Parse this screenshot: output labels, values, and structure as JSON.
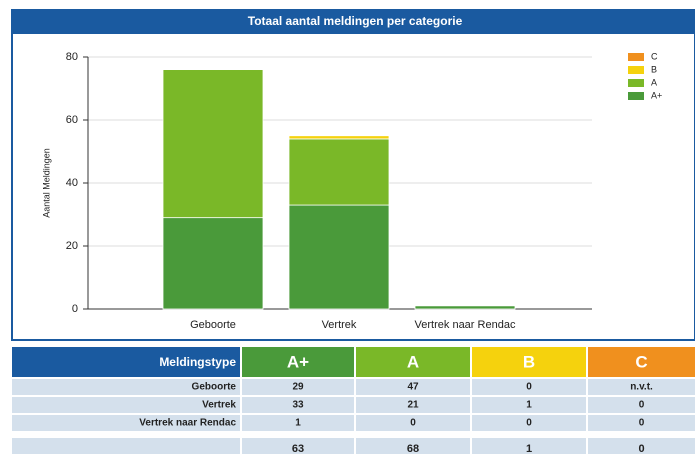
{
  "chart_data": {
    "type": "bar",
    "stacked": true,
    "title": "Totaal aantal meldingen per categorie",
    "y_label": "Aantal Meldingen",
    "categories": [
      "Geboorte",
      "Vertrek",
      "Vertrek naar Rendac"
    ],
    "series": [
      {
        "name": "A+",
        "color": "#4a9a3a",
        "values": [
          29,
          33,
          1
        ]
      },
      {
        "name": "A",
        "color": "#7ab828",
        "values": [
          47,
          21,
          0
        ]
      },
      {
        "name": "B",
        "color": "#f5d20d",
        "values": [
          0,
          1,
          0
        ]
      },
      {
        "name": "C",
        "color": "#f0901e",
        "values": [
          null,
          0,
          0
        ]
      }
    ],
    "ylim": [
      0,
      80
    ],
    "yticks": [
      0,
      20,
      40,
      60,
      80
    ],
    "grid": true,
    "legend": "top-right"
  },
  "table": {
    "header": [
      "Meldingstype",
      "A+",
      "A",
      "B",
      "C"
    ],
    "rows": [
      [
        "Geboorte",
        "29",
        "47",
        "0",
        "n.v.t."
      ],
      [
        "Vertrek",
        "33",
        "21",
        "1",
        "0"
      ],
      [
        "Vertrek naar Rendac",
        "1",
        "0",
        "0",
        "0"
      ]
    ],
    "totals": [
      "63",
      "68",
      "1",
      "0"
    ]
  }
}
